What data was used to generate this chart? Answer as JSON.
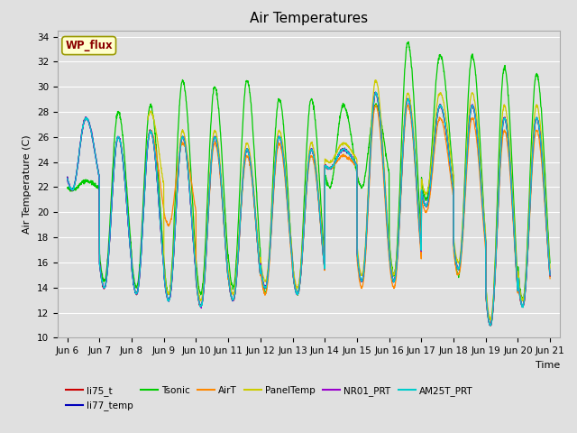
{
  "title": "Air Temperatures",
  "ylabel": "Air Temperature (C)",
  "xlabel": "Time",
  "ylim": [
    10,
    34.5
  ],
  "yticks": [
    10,
    12,
    14,
    16,
    18,
    20,
    22,
    24,
    26,
    28,
    30,
    32,
    34
  ],
  "xtick_labels": [
    "Jun 6",
    "Jun 7",
    "Jun 8",
    "Jun 9",
    "Jun 10",
    "Jun 11",
    "Jun 12",
    "Jun 13",
    "Jun 14",
    "Jun 15",
    "Jun 16",
    "Jun 17",
    "Jun 18",
    "Jun 19",
    "Jun 20",
    "Jun 21"
  ],
  "wp_flux_label": "WP_flux",
  "background_color": "#e0e0e0",
  "grid_color": "#ffffff",
  "fig_facecolor": "#e0e0e0",
  "title_fontsize": 11,
  "axis_fontsize": 8,
  "tick_fontsize": 7.5,
  "colors": {
    "li75_t": "#cc0000",
    "li77_temp": "#0000bb",
    "Tsonic": "#00cc00",
    "AirT": "#ff8800",
    "PanelTemp": "#cccc00",
    "NR01_PRT": "#9900cc",
    "AM25T_PRT": "#00cccc"
  }
}
